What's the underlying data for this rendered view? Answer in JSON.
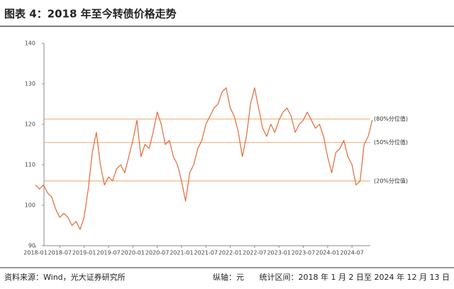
{
  "chart_data": {
    "type": "line",
    "title": "图表 4：2018 年至今转债价格走势",
    "x": [
      "2018-01",
      "2018-02",
      "2018-03",
      "2018-04",
      "2018-05",
      "2018-06",
      "2018-07",
      "2018-08",
      "2018-09",
      "2018-10",
      "2018-11",
      "2018-12",
      "2019-01",
      "2019-02",
      "2019-03",
      "2019-04",
      "2019-05",
      "2019-06",
      "2019-07",
      "2019-08",
      "2019-09",
      "2019-10",
      "2019-11",
      "2019-12",
      "2020-01",
      "2020-02",
      "2020-03",
      "2020-04",
      "2020-05",
      "2020-06",
      "2020-07",
      "2020-08",
      "2020-09",
      "2020-10",
      "2020-11",
      "2020-12",
      "2021-01",
      "2021-02",
      "2021-03",
      "2021-04",
      "2021-05",
      "2021-06",
      "2021-07",
      "2021-08",
      "2021-09",
      "2021-10",
      "2021-11",
      "2021-12",
      "2022-01",
      "2022-02",
      "2022-03",
      "2022-04",
      "2022-05",
      "2022-06",
      "2022-07",
      "2022-08",
      "2022-09",
      "2022-10",
      "2022-11",
      "2022-12",
      "2023-01",
      "2023-02",
      "2023-03",
      "2023-04",
      "2023-05",
      "2023-06",
      "2023-07",
      "2023-08",
      "2023-09",
      "2023-10",
      "2023-11",
      "2023-12",
      "2024-01",
      "2024-02",
      "2024-03",
      "2024-04",
      "2024-05",
      "2024-06",
      "2024-07",
      "2024-08",
      "2024-09",
      "2024-10",
      "2024-11",
      "2024-12"
    ],
    "series": [
      {
        "color": "#e06a38",
        "values": [
          105,
          104,
          105,
          103,
          102,
          99,
          97,
          98,
          97,
          95,
          96,
          94,
          97,
          104,
          113,
          118,
          110,
          105,
          107,
          106,
          109,
          110,
          108,
          112,
          116,
          121,
          112,
          115,
          114,
          118,
          123,
          120,
          115,
          116,
          112,
          110,
          106,
          101,
          108,
          110,
          114,
          116,
          120,
          122,
          124,
          125,
          128,
          129,
          124,
          122,
          118,
          112,
          117,
          125,
          129,
          124,
          119,
          117,
          120,
          118,
          121,
          123,
          124,
          122,
          118,
          120,
          121,
          123,
          121,
          119,
          120,
          117,
          112,
          108,
          113,
          114,
          116,
          112,
          110,
          105,
          106,
          115,
          117,
          121
        ]
      }
    ],
    "xticks": [
      "2018-01",
      "2018-07",
      "2019-01",
      "2019-07",
      "2020-01",
      "2020-07",
      "2021-01",
      "2021-07",
      "2022-01",
      "2022-07",
      "2023-01",
      "2023-07",
      "2024-01",
      "2024-07"
    ],
    "ylim": [
      90,
      140
    ],
    "yticks": [
      90,
      100,
      110,
      120,
      130,
      140
    ],
    "reference_lines": [
      {
        "label": "(80%分位值)",
        "value": 121.3,
        "color": "#f5b98a"
      },
      {
        "label": "(50%分位值)",
        "value": 115.5,
        "color": "#f5b98a"
      },
      {
        "label": "(20%分位值)",
        "value": 106,
        "color": "#f5b98a"
      }
    ],
    "footer": {
      "source": "资料来源：Wind，光大证券研究所",
      "unit": "纵轴：元",
      "period": "统计区间：2018 年 1 月 2 日至 2024 年 12 月 13 日"
    }
  }
}
